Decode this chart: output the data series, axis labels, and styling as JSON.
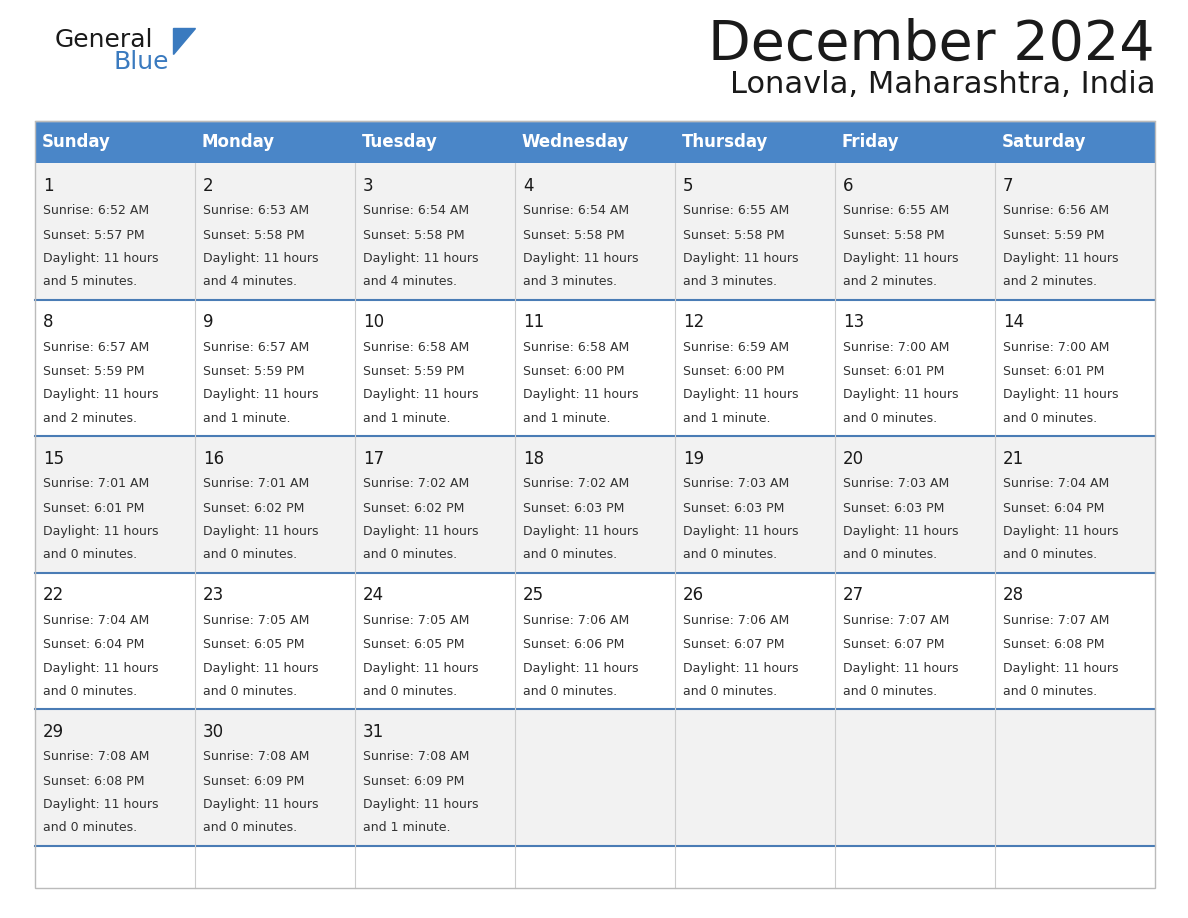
{
  "title": "December 2024",
  "subtitle": "Lonavla, Maharashtra, India",
  "header_color": "#4a86c8",
  "header_text_color": "#ffffff",
  "day_headers": [
    "Sunday",
    "Monday",
    "Tuesday",
    "Wednesday",
    "Thursday",
    "Friday",
    "Saturday"
  ],
  "title_color": "#1a1a1a",
  "subtitle_color": "#1a1a1a",
  "logo_text_color": "#1a1a1a",
  "logo_blue_color": "#3a7abf",
  "row_colors": [
    "#f2f2f2",
    "#ffffff"
  ],
  "divider_color": "#4a7cb5",
  "cell_border_color": "#ffffff",
  "outer_border_color": "#bbbbbb",
  "days": [
    {
      "date": 1,
      "col": 0,
      "row": 0,
      "sunrise": "6:52 AM",
      "sunset": "5:57 PM",
      "daylight_extra": "and 5 minutes."
    },
    {
      "date": 2,
      "col": 1,
      "row": 0,
      "sunrise": "6:53 AM",
      "sunset": "5:58 PM",
      "daylight_extra": "and 4 minutes."
    },
    {
      "date": 3,
      "col": 2,
      "row": 0,
      "sunrise": "6:54 AM",
      "sunset": "5:58 PM",
      "daylight_extra": "and 4 minutes."
    },
    {
      "date": 4,
      "col": 3,
      "row": 0,
      "sunrise": "6:54 AM",
      "sunset": "5:58 PM",
      "daylight_extra": "and 3 minutes."
    },
    {
      "date": 5,
      "col": 4,
      "row": 0,
      "sunrise": "6:55 AM",
      "sunset": "5:58 PM",
      "daylight_extra": "and 3 minutes."
    },
    {
      "date": 6,
      "col": 5,
      "row": 0,
      "sunrise": "6:55 AM",
      "sunset": "5:58 PM",
      "daylight_extra": "and 2 minutes."
    },
    {
      "date": 7,
      "col": 6,
      "row": 0,
      "sunrise": "6:56 AM",
      "sunset": "5:59 PM",
      "daylight_extra": "and 2 minutes."
    },
    {
      "date": 8,
      "col": 0,
      "row": 1,
      "sunrise": "6:57 AM",
      "sunset": "5:59 PM",
      "daylight_extra": "and 2 minutes."
    },
    {
      "date": 9,
      "col": 1,
      "row": 1,
      "sunrise": "6:57 AM",
      "sunset": "5:59 PM",
      "daylight_extra": "and 1 minute."
    },
    {
      "date": 10,
      "col": 2,
      "row": 1,
      "sunrise": "6:58 AM",
      "sunset": "5:59 PM",
      "daylight_extra": "and 1 minute."
    },
    {
      "date": 11,
      "col": 3,
      "row": 1,
      "sunrise": "6:58 AM",
      "sunset": "6:00 PM",
      "daylight_extra": "and 1 minute."
    },
    {
      "date": 12,
      "col": 4,
      "row": 1,
      "sunrise": "6:59 AM",
      "sunset": "6:00 PM",
      "daylight_extra": "and 1 minute."
    },
    {
      "date": 13,
      "col": 5,
      "row": 1,
      "sunrise": "7:00 AM",
      "sunset": "6:01 PM",
      "daylight_extra": "and 0 minutes."
    },
    {
      "date": 14,
      "col": 6,
      "row": 1,
      "sunrise": "7:00 AM",
      "sunset": "6:01 PM",
      "daylight_extra": "and 0 minutes."
    },
    {
      "date": 15,
      "col": 0,
      "row": 2,
      "sunrise": "7:01 AM",
      "sunset": "6:01 PM",
      "daylight_extra": "and 0 minutes."
    },
    {
      "date": 16,
      "col": 1,
      "row": 2,
      "sunrise": "7:01 AM",
      "sunset": "6:02 PM",
      "daylight_extra": "and 0 minutes."
    },
    {
      "date": 17,
      "col": 2,
      "row": 2,
      "sunrise": "7:02 AM",
      "sunset": "6:02 PM",
      "daylight_extra": "and 0 minutes."
    },
    {
      "date": 18,
      "col": 3,
      "row": 2,
      "sunrise": "7:02 AM",
      "sunset": "6:03 PM",
      "daylight_extra": "and 0 minutes."
    },
    {
      "date": 19,
      "col": 4,
      "row": 2,
      "sunrise": "7:03 AM",
      "sunset": "6:03 PM",
      "daylight_extra": "and 0 minutes."
    },
    {
      "date": 20,
      "col": 5,
      "row": 2,
      "sunrise": "7:03 AM",
      "sunset": "6:03 PM",
      "daylight_extra": "and 0 minutes."
    },
    {
      "date": 21,
      "col": 6,
      "row": 2,
      "sunrise": "7:04 AM",
      "sunset": "6:04 PM",
      "daylight_extra": "and 0 minutes."
    },
    {
      "date": 22,
      "col": 0,
      "row": 3,
      "sunrise": "7:04 AM",
      "sunset": "6:04 PM",
      "daylight_extra": "and 0 minutes."
    },
    {
      "date": 23,
      "col": 1,
      "row": 3,
      "sunrise": "7:05 AM",
      "sunset": "6:05 PM",
      "daylight_extra": "and 0 minutes."
    },
    {
      "date": 24,
      "col": 2,
      "row": 3,
      "sunrise": "7:05 AM",
      "sunset": "6:05 PM",
      "daylight_extra": "and 0 minutes."
    },
    {
      "date": 25,
      "col": 3,
      "row": 3,
      "sunrise": "7:06 AM",
      "sunset": "6:06 PM",
      "daylight_extra": "and 0 minutes."
    },
    {
      "date": 26,
      "col": 4,
      "row": 3,
      "sunrise": "7:06 AM",
      "sunset": "6:07 PM",
      "daylight_extra": "and 0 minutes."
    },
    {
      "date": 27,
      "col": 5,
      "row": 3,
      "sunrise": "7:07 AM",
      "sunset": "6:07 PM",
      "daylight_extra": "and 0 minutes."
    },
    {
      "date": 28,
      "col": 6,
      "row": 3,
      "sunrise": "7:07 AM",
      "sunset": "6:08 PM",
      "daylight_extra": "and 0 minutes."
    },
    {
      "date": 29,
      "col": 0,
      "row": 4,
      "sunrise": "7:08 AM",
      "sunset": "6:08 PM",
      "daylight_extra": "and 0 minutes."
    },
    {
      "date": 30,
      "col": 1,
      "row": 4,
      "sunrise": "7:08 AM",
      "sunset": "6:09 PM",
      "daylight_extra": "and 0 minutes."
    },
    {
      "date": 31,
      "col": 2,
      "row": 4,
      "sunrise": "7:08 AM",
      "sunset": "6:09 PM",
      "daylight_extra": "and 1 minute."
    }
  ]
}
